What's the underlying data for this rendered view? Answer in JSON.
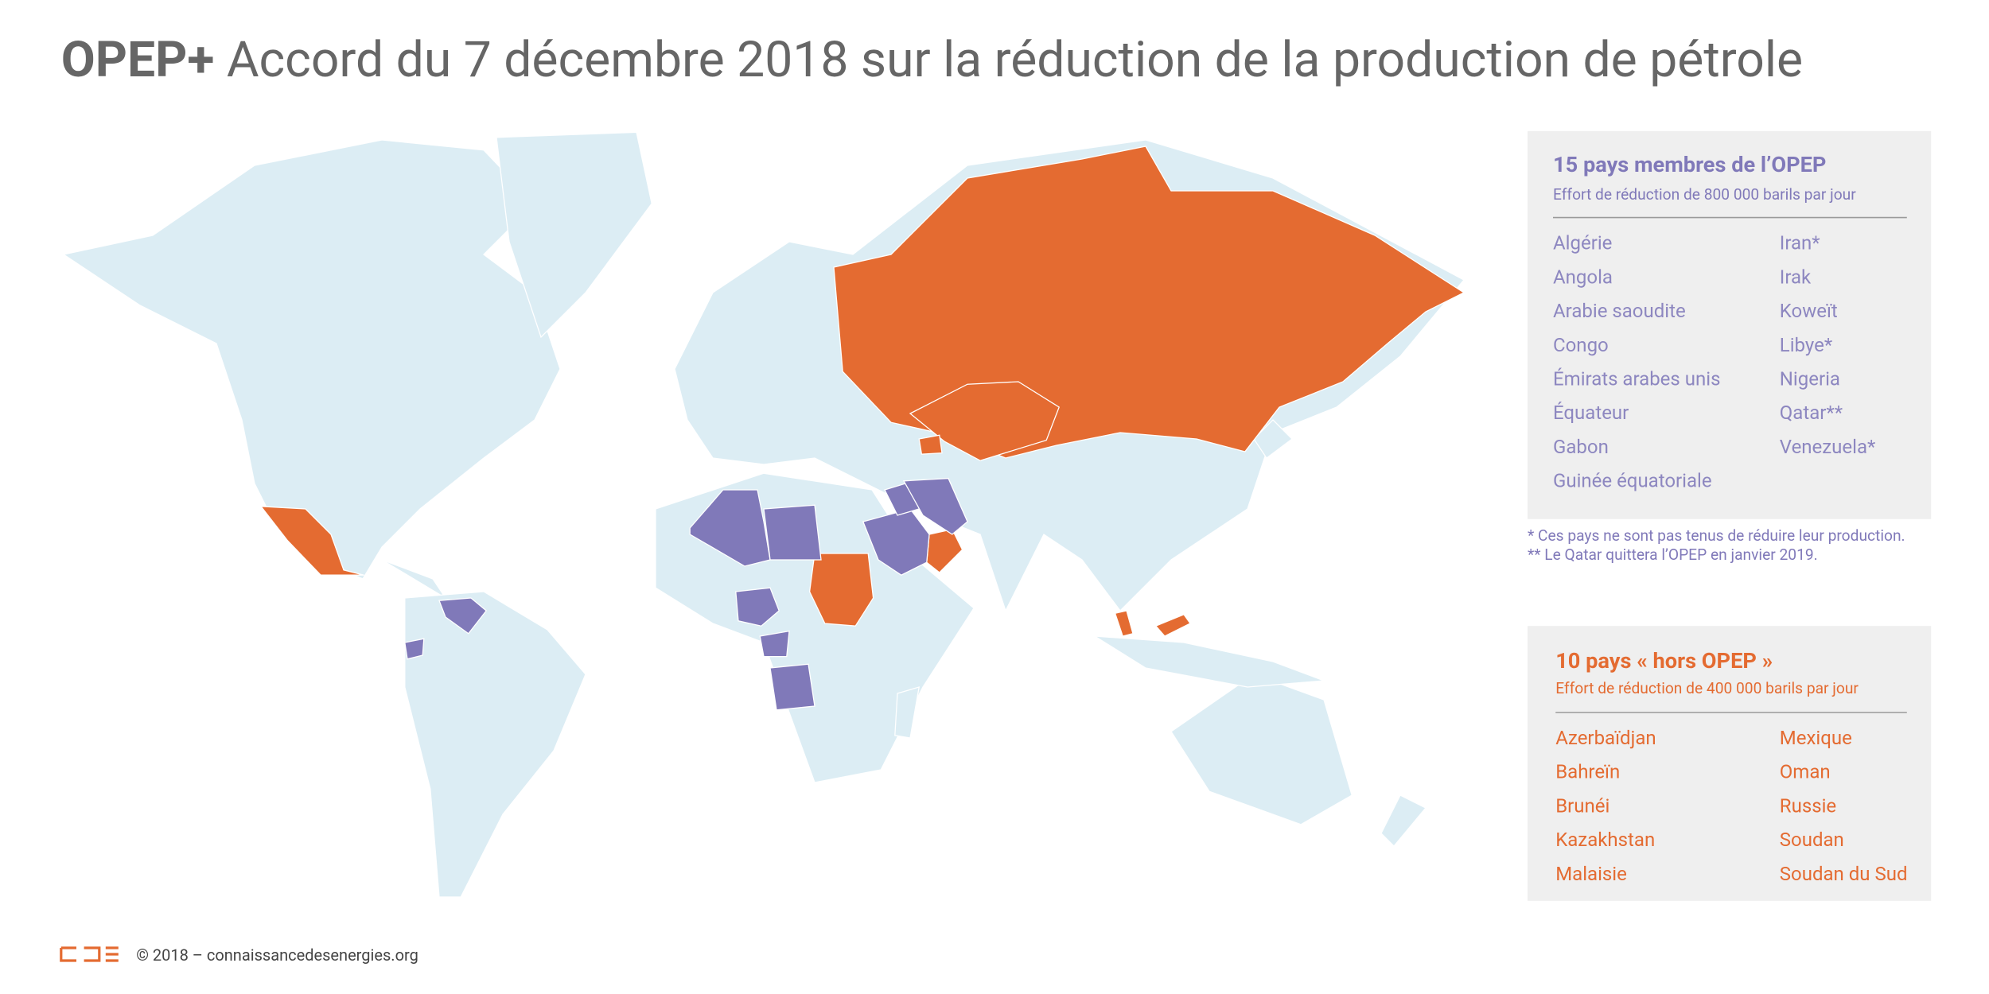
{
  "title": {
    "bold": "OPEP+",
    "rest": "Accord du 7 décembre 2018 sur la réduction de la production de pétrole"
  },
  "opep": {
    "heading": "15 pays membres de l’OPEP",
    "subheading": "Effort de réduction de 800 000 barils par jour",
    "countries": [
      "Algérie",
      "Angola",
      "Arabie saoudite",
      "Congo",
      "Émirats arabes unis",
      "Équateur",
      "Gabon",
      "Guinée équatoriale",
      "Iran*",
      "Irak",
      "Koweït",
      "Libye*",
      "Nigeria",
      "Qatar**",
      "Venezuela*"
    ],
    "notes": [
      "* Ces pays ne sont pas tenus de réduire leur production.",
      "** Le Qatar quittera l’OPEP en janvier 2019."
    ]
  },
  "non_opep": {
    "heading": "10 pays « hors OPEP »",
    "subheading": "Effort de réduction de 400 000 barils par jour",
    "countries": [
      "Azerbaïdjan",
      "Bahreïn",
      "Brunéi",
      "Kazakhstan",
      "Malaisie",
      "Mexique",
      "Oman",
      "Russie",
      "Soudan",
      "Soudan du Sud"
    ]
  },
  "footer": {
    "copyright": "© 2018 – connaissancedesenergies.org"
  }
}
